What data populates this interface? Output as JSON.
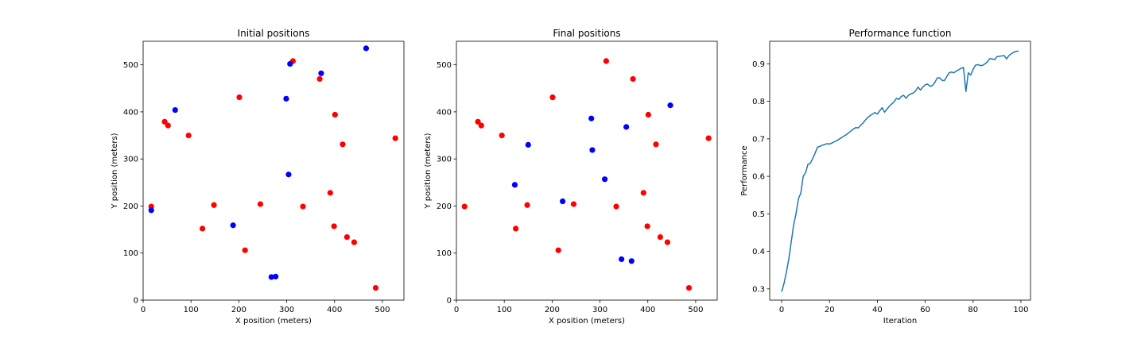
{
  "colors": {
    "red": "#ff0000",
    "blue": "#0000ff",
    "line": "#1f77b4"
  },
  "chart_data": [
    {
      "type": "scatter",
      "title": "Initial positions",
      "xlabel": "X position (meters)",
      "ylabel": "Y position (meters)",
      "xlim": [
        0,
        545
      ],
      "ylim": [
        0,
        550
      ],
      "xticks": [
        0,
        100,
        200,
        300,
        400,
        500
      ],
      "yticks": [
        0,
        100,
        200,
        300,
        400,
        500
      ],
      "series": [
        {
          "name": "red",
          "color": "#ff0000",
          "x": [
            17,
            45,
            52,
            95,
            124,
            148,
            201,
            213,
            245,
            313,
            334,
            369,
            391,
            399,
            401,
            417,
            426,
            441,
            486,
            527
          ],
          "y": [
            199,
            379,
            371,
            350,
            152,
            202,
            431,
            106,
            204,
            508,
            199,
            470,
            228,
            157,
            394,
            331,
            134,
            123,
            26,
            344
          ]
        },
        {
          "name": "blue",
          "color": "#0000ff",
          "x": [
            17,
            67,
            188,
            268,
            277,
            299,
            304,
            307,
            372,
            466
          ],
          "y": [
            191,
            404,
            159,
            49,
            50,
            428,
            267,
            502,
            482,
            535
          ]
        }
      ]
    },
    {
      "type": "scatter",
      "title": "Final positions",
      "xlabel": "X position (meters)",
      "ylabel": "Y position (meters)",
      "xlim": [
        0,
        545
      ],
      "ylim": [
        0,
        550
      ],
      "xticks": [
        0,
        100,
        200,
        300,
        400,
        500
      ],
      "yticks": [
        0,
        100,
        200,
        300,
        400,
        500
      ],
      "series": [
        {
          "name": "red",
          "color": "#ff0000",
          "x": [
            17,
            45,
            52,
            95,
            124,
            148,
            201,
            213,
            245,
            313,
            334,
            369,
            391,
            399,
            401,
            417,
            426,
            441,
            486,
            527
          ],
          "y": [
            199,
            379,
            371,
            350,
            152,
            202,
            431,
            106,
            204,
            508,
            199,
            470,
            228,
            157,
            394,
            331,
            134,
            123,
            26,
            344
          ]
        },
        {
          "name": "blue",
          "color": "#0000ff",
          "x": [
            122,
            150,
            222,
            282,
            284,
            310,
            345,
            355,
            366,
            447
          ],
          "y": [
            245,
            330,
            210,
            386,
            319,
            257,
            87,
            368,
            83,
            414
          ]
        }
      ]
    },
    {
      "type": "line",
      "title": "Performance function",
      "xlabel": "Iteration",
      "ylabel": "Performance",
      "xlim": [
        -5,
        104
      ],
      "ylim": [
        0.27,
        0.96
      ],
      "xticks": [
        0,
        20,
        40,
        60,
        80,
        100
      ],
      "yticks": [
        0.3,
        0.4,
        0.5,
        0.6,
        0.7,
        0.8,
        0.9
      ],
      "series": [
        {
          "name": "performance",
          "color": "#1f77b4",
          "values": [
            0.292,
            0.315,
            0.345,
            0.38,
            0.425,
            0.47,
            0.5,
            0.54,
            0.555,
            0.6,
            0.61,
            0.632,
            0.635,
            0.648,
            0.662,
            0.678,
            0.68,
            0.683,
            0.685,
            0.687,
            0.686,
            0.689,
            0.692,
            0.695,
            0.699,
            0.703,
            0.707,
            0.711,
            0.716,
            0.721,
            0.726,
            0.73,
            0.729,
            0.736,
            0.742,
            0.75,
            0.757,
            0.762,
            0.766,
            0.77,
            0.766,
            0.775,
            0.783,
            0.771,
            0.779,
            0.787,
            0.793,
            0.799,
            0.808,
            0.805,
            0.813,
            0.816,
            0.808,
            0.816,
            0.82,
            0.822,
            0.828,
            0.838,
            0.83,
            0.838,
            0.844,
            0.846,
            0.84,
            0.842,
            0.85,
            0.862,
            0.863,
            0.856,
            0.855,
            0.866,
            0.876,
            0.878,
            0.876,
            0.881,
            0.884,
            0.888,
            0.89,
            0.826,
            0.876,
            0.87,
            0.885,
            0.896,
            0.898,
            0.895,
            0.896,
            0.9,
            0.905,
            0.914,
            0.913,
            0.911,
            0.919,
            0.92,
            0.921,
            0.922,
            0.913,
            0.922,
            0.927,
            0.931,
            0.933,
            0.934
          ]
        }
      ]
    }
  ]
}
